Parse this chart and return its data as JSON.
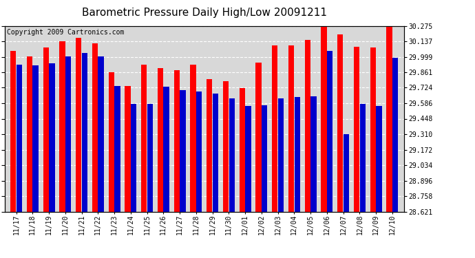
{
  "title": "Barometric Pressure Daily High/Low 20091211",
  "copyright": "Copyright 2009 Cartronics.com",
  "dates": [
    "11/17",
    "11/18",
    "11/19",
    "11/20",
    "11/21",
    "11/22",
    "11/23",
    "11/24",
    "11/25",
    "11/26",
    "11/27",
    "11/28",
    "11/29",
    "11/30",
    "12/01",
    "12/02",
    "12/03",
    "12/04",
    "12/05",
    "12/06",
    "12/07",
    "12/08",
    "12/09",
    "12/10"
  ],
  "highs": [
    30.05,
    30.0,
    30.08,
    30.14,
    30.17,
    30.12,
    29.86,
    29.74,
    29.93,
    29.9,
    29.88,
    29.93,
    29.8,
    29.78,
    29.72,
    29.95,
    30.1,
    30.1,
    30.15,
    30.27,
    30.2,
    30.09,
    30.08,
    30.28
  ],
  "lows": [
    29.93,
    29.92,
    29.94,
    30.0,
    30.03,
    30.0,
    29.74,
    29.58,
    29.58,
    29.73,
    29.7,
    29.69,
    29.67,
    29.63,
    29.56,
    29.57,
    29.63,
    29.64,
    29.65,
    30.05,
    29.31,
    29.58,
    29.56,
    29.99
  ],
  "ylim_min": 28.621,
  "ylim_max": 30.275,
  "yticks": [
    28.621,
    28.758,
    28.896,
    29.034,
    29.172,
    29.31,
    29.448,
    29.586,
    29.724,
    29.861,
    29.999,
    30.137,
    30.275
  ],
  "high_color": "#ff0000",
  "low_color": "#0000cc",
  "bg_color": "#ffffff",
  "plot_bg_color": "#d8d8d8",
  "grid_color": "#ffffff",
  "title_fontsize": 11,
  "copyright_fontsize": 7,
  "bar_width": 0.35,
  "figwidth": 6.9,
  "figheight": 3.75
}
